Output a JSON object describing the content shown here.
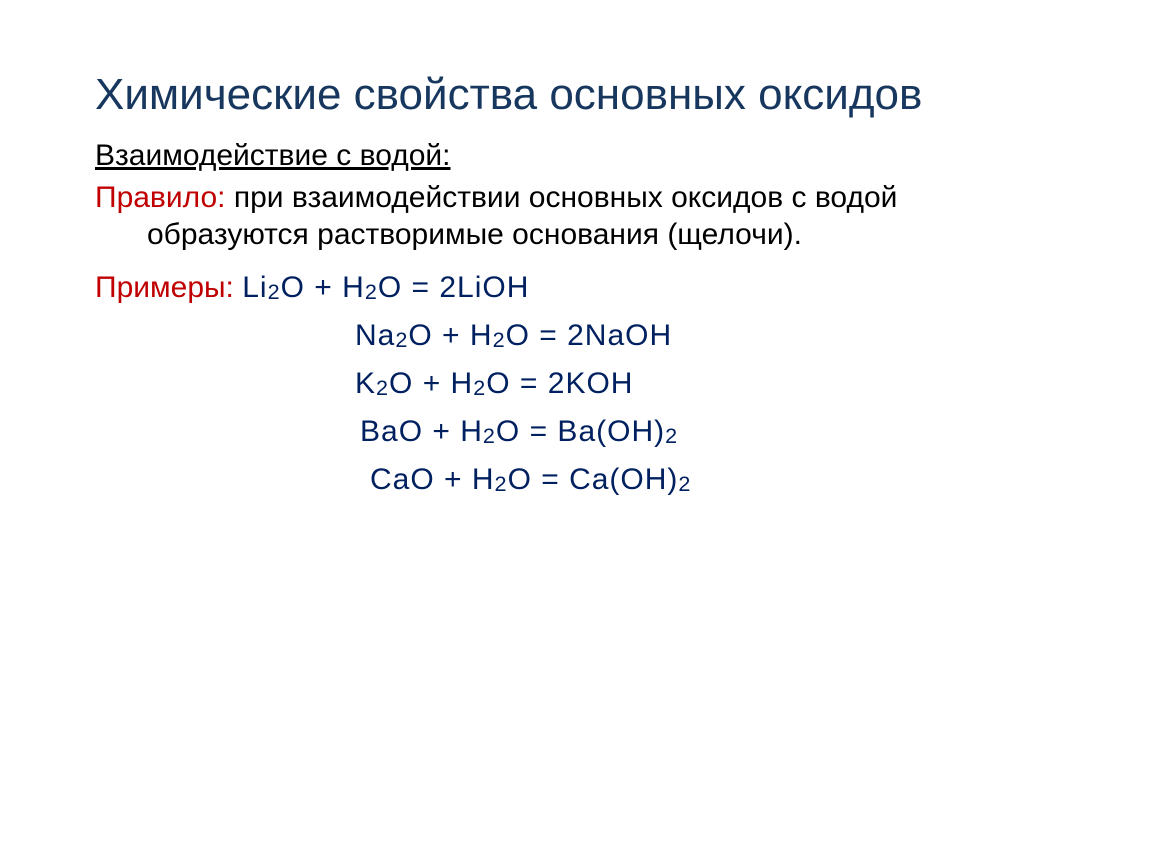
{
  "title": "Химические свойства основных оксидов",
  "subtitle": "Взаимодействие с водой:",
  "rule_label": "Правило:",
  "rule_text_1": " при взаимодействии основных оксидов с водой",
  "rule_text_2": "образуются растворимые основания (щелочи).",
  "examples_label": "Примеры: ",
  "equations": {
    "e1": {
      "lhs1": "Li",
      "s1": "2",
      "mid1": "O + H",
      "s2": "2",
      "mid2": "O = 2LiOH"
    },
    "e2": {
      "lhs1": "Na",
      "s1": "2",
      "mid1": "O + H",
      "s2": "2",
      "mid2": "O = 2NaOH"
    },
    "e3": {
      "lhs1": "K",
      "s1": "2",
      "mid1": "O + H",
      "s2": "2",
      "mid2": "O = 2KOH"
    },
    "e4": {
      "lhs1": "BaO + H",
      "s1": "2",
      "mid1": "O = Ba(OH)",
      "s2": "2"
    },
    "e5": {
      "lhs1": "CaO + H",
      "s1": "2",
      "mid1": "O = Ca(OH)",
      "s2": "2"
    }
  },
  "colors": {
    "title": "#17375e",
    "rule_label": "#c00000",
    "equation": "#002060",
    "body": "#000000",
    "background": "#ffffff"
  },
  "fonts": {
    "family": "Comic Sans MS",
    "title_size_pt": 33,
    "body_size_pt": 22
  }
}
